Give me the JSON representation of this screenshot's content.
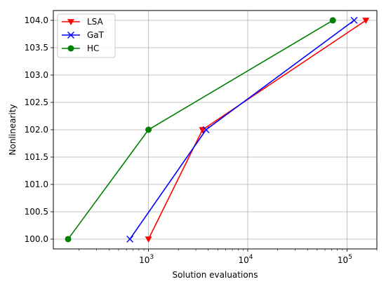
{
  "chart_data": {
    "type": "line",
    "xscale": "log",
    "xlabel": "Solution evaluations",
    "ylabel": "Nonlinearity",
    "ylim": [
      99.82,
      104.18
    ],
    "yticks": [
      "100.0",
      "100.5",
      "101.0",
      "101.5",
      "102.0",
      "102.5",
      "103.0",
      "103.5",
      "104.0"
    ],
    "xticks": [
      {
        "base": "10",
        "exp": "3",
        "value": 1000
      },
      {
        "base": "10",
        "exp": "4",
        "value": 10000
      },
      {
        "base": "10",
        "exp": "5",
        "value": 100000
      }
    ],
    "grid": true,
    "legend_position": "top-left",
    "series": [
      {
        "name": "LSA",
        "color": "#ff0000",
        "marker": "triangle-down",
        "points": [
          [
            1000,
            100
          ],
          [
            3500,
            102
          ],
          [
            155000,
            104
          ]
        ]
      },
      {
        "name": "GaT",
        "color": "#0000ff",
        "marker": "x",
        "points": [
          [
            650,
            100
          ],
          [
            3800,
            102
          ],
          [
            118000,
            104
          ]
        ]
      },
      {
        "name": "HC",
        "color": "#008000",
        "marker": "circle",
        "points": [
          [
            155,
            100
          ],
          [
            1000,
            102
          ],
          [
            72000,
            104
          ]
        ]
      }
    ]
  }
}
